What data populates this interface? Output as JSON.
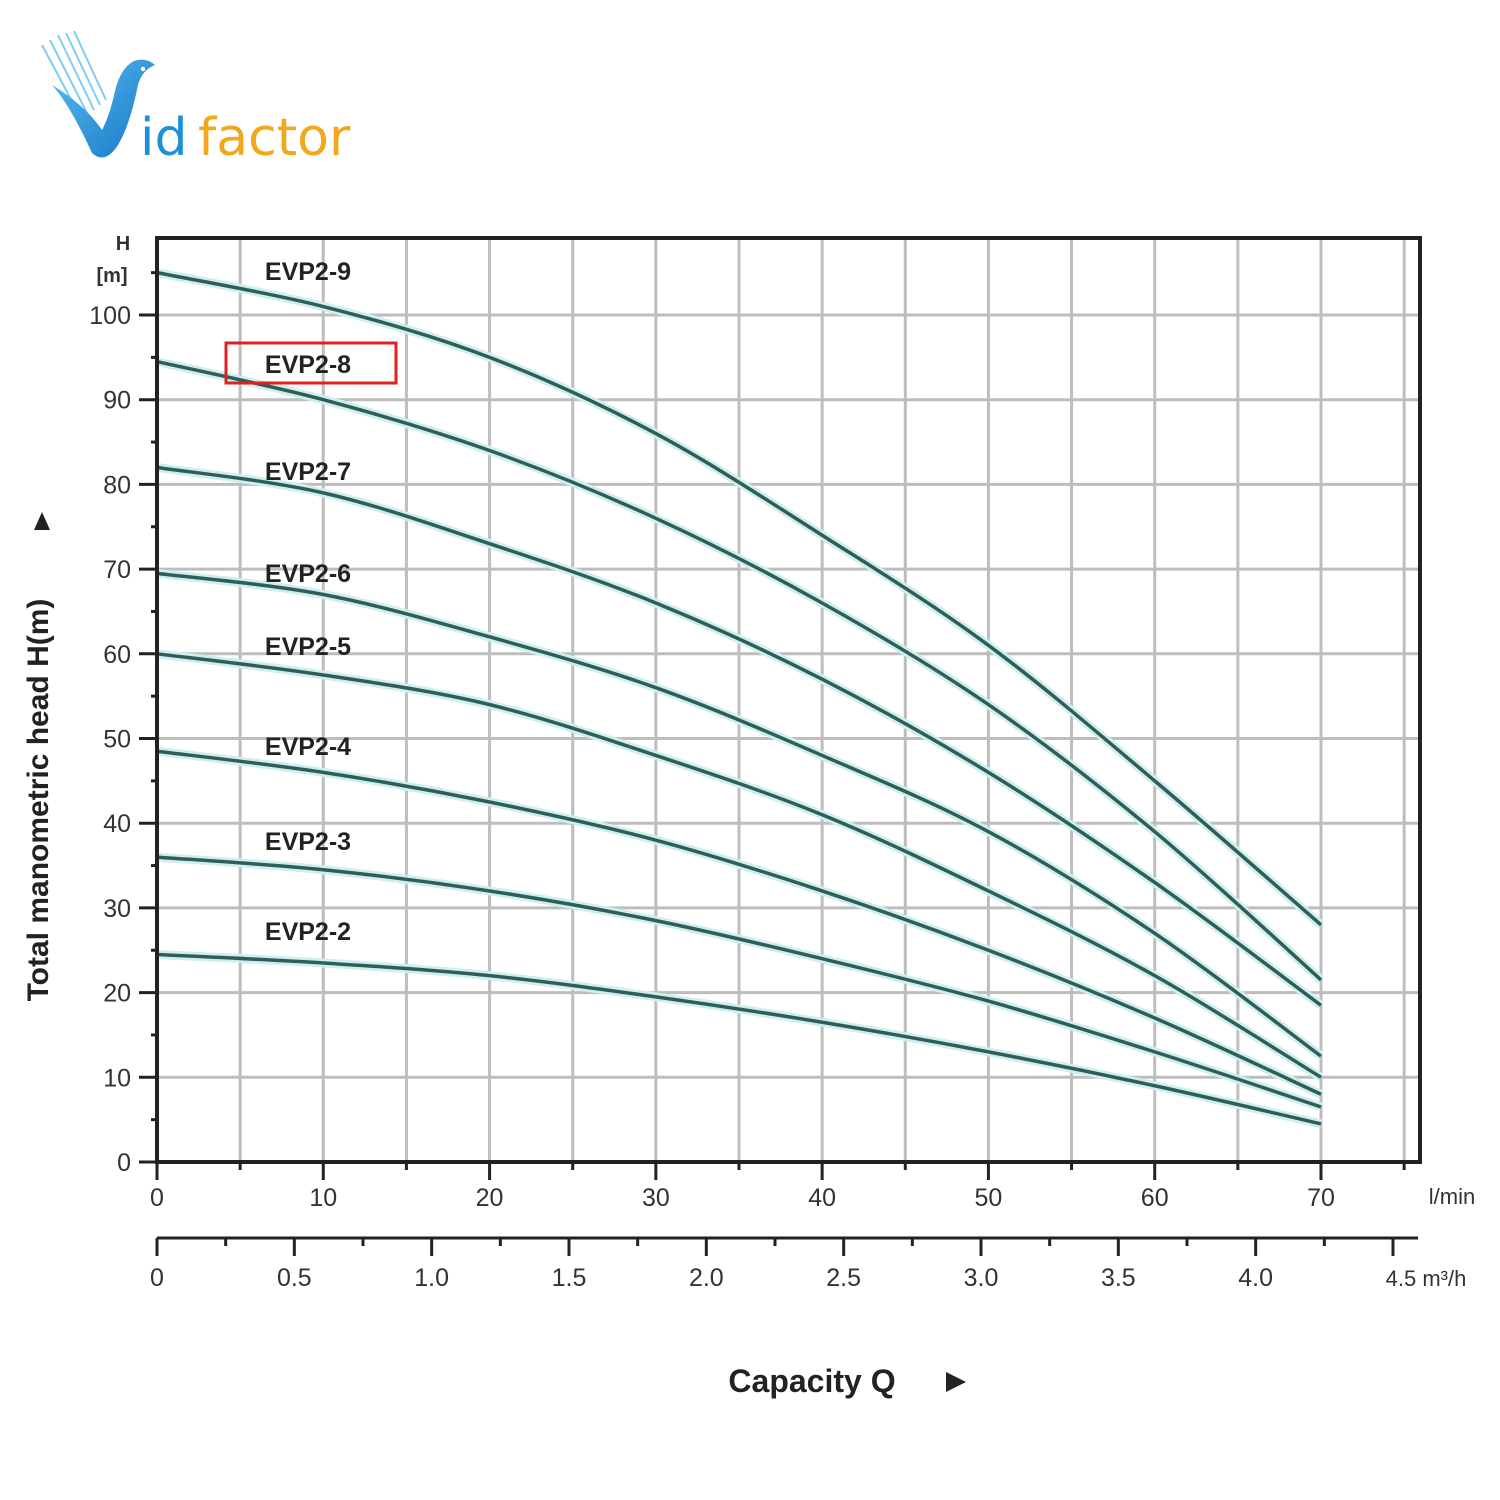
{
  "brand": {
    "logo_text_part1": "id",
    "logo_text_part2": "factor",
    "logo_letter": "V",
    "colors": {
      "blue": "#1f8fd8",
      "orange": "#f2a81d"
    }
  },
  "colors": {
    "curve": "#2f5e5a",
    "curve_glow": "#cfeeee",
    "grid": "#bdbdbd",
    "axis": "#222222",
    "highlight_box": "#e02020"
  },
  "chart_data": {
    "type": "line",
    "title": "",
    "xlabel": "Capacity Q",
    "ylabel": "Total manometric head H(m)",
    "y_unit_label": [
      "H",
      "[m]"
    ],
    "x_unit_primary": "l/min",
    "x_unit_secondary": "4.5 m³/h",
    "xlim": [
      0,
      76
    ],
    "ylim": [
      0,
      108
    ],
    "grid": true,
    "x_ticks_primary": [
      "0",
      "10",
      "20",
      "30",
      "40",
      "50",
      "60",
      "70"
    ],
    "x_ticks_secondary": [
      "0",
      "0.5",
      "1.0",
      "1.5",
      "2.0",
      "2.5",
      "3.0",
      "3.5",
      "4.0",
      "4.5"
    ],
    "y_ticks": [
      "0",
      "10",
      "20",
      "30",
      "40",
      "50",
      "60",
      "70",
      "80",
      "90",
      "100"
    ],
    "highlighted_series": "EVP2-8",
    "x": [
      0,
      10,
      20,
      30,
      40,
      50,
      60,
      70
    ],
    "series": [
      {
        "name": "EVP2-9",
        "values": [
          105,
          101,
          95,
          86,
          74,
          61,
          45,
          28
        ]
      },
      {
        "name": "EVP2-8",
        "values": [
          94.5,
          90,
          84,
          76,
          66,
          54,
          39,
          21.5
        ]
      },
      {
        "name": "EVP2-7",
        "values": [
          82,
          79,
          73,
          66,
          57,
          46,
          33,
          18.5
        ]
      },
      {
        "name": "EVP2-6",
        "values": [
          69.5,
          67,
          62,
          56,
          48,
          39,
          27,
          12.5
        ]
      },
      {
        "name": "EVP2-5",
        "values": [
          60,
          57.5,
          54,
          48,
          41,
          32,
          22,
          10
        ]
      },
      {
        "name": "EVP2-4",
        "values": [
          48.5,
          46,
          42.5,
          38,
          32,
          25,
          17,
          8
        ]
      },
      {
        "name": "EVP2-3",
        "values": [
          36,
          34.5,
          32,
          28.5,
          24,
          19,
          13,
          6.5
        ]
      },
      {
        "name": "EVP2-2",
        "values": [
          24.5,
          23.5,
          22,
          19.5,
          16.5,
          13,
          9,
          4.5
        ]
      }
    ]
  }
}
